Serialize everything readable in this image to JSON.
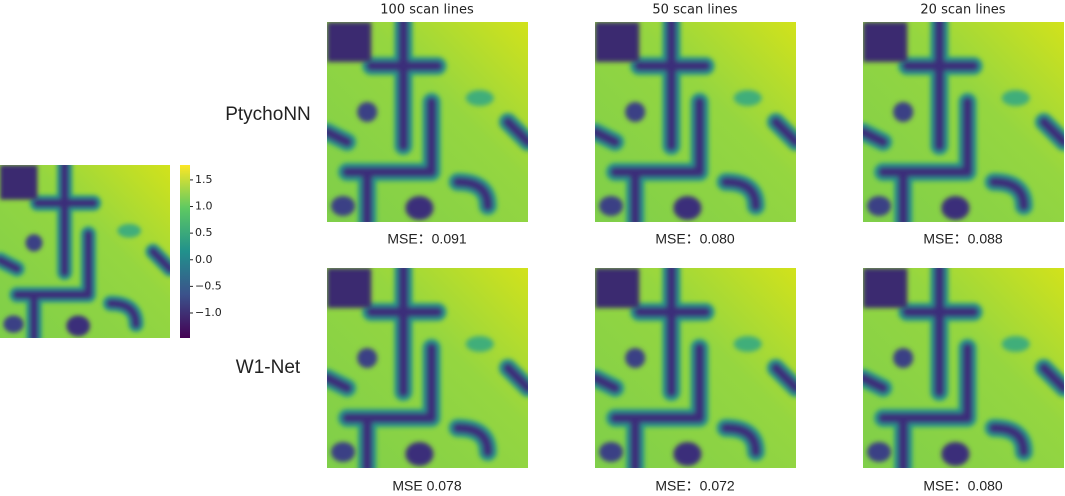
{
  "columns": [
    "100 scan lines",
    "50 scan lines",
    "20 scan lines"
  ],
  "rows": [
    {
      "label": "PtychoNN",
      "mse": [
        "MSE：0.091",
        "MSE：0.080",
        "MSE：0.088"
      ]
    },
    {
      "label": "W1-Net",
      "mse": [
        "MSE 0.078",
        "MSE：0.072",
        "MSE：0.080"
      ]
    }
  ],
  "colorbar": {
    "range": [
      -1.47,
      1.78
    ],
    "ticks": [
      {
        "value": 1.5,
        "label": "1.5"
      },
      {
        "value": 1.0,
        "label": "1.0"
      },
      {
        "value": 0.5,
        "label": "0.5"
      },
      {
        "value": 0.0,
        "label": "0.0"
      },
      {
        "value": -0.5,
        "label": "−0.5"
      },
      {
        "value": -1.0,
        "label": "−1.0"
      }
    ]
  }
}
